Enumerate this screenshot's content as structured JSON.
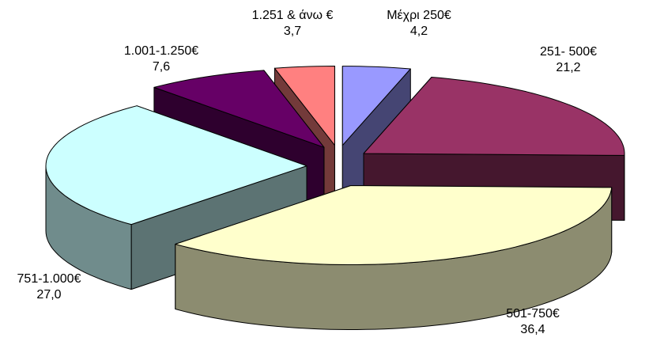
{
  "chart_data": {
    "type": "pie",
    "style": "3d-exploded",
    "legend": "none",
    "slices": [
      {
        "label": "Μέχρι 250€",
        "value": 4.2,
        "value_text": "4,2",
        "color": "#9999ff"
      },
      {
        "label": "251- 500€",
        "value": 21.2,
        "value_text": "21,2",
        "color": "#993366"
      },
      {
        "label": "501-750€",
        "value": 36.4,
        "value_text": "36,4",
        "color": "#ffffcc"
      },
      {
        "label": "751-1.000€",
        "value": 27.0,
        "value_text": "27,0",
        "color": "#ccffff"
      },
      {
        "label": "1.001-1.250€",
        "value": 7.6,
        "value_text": "7,6",
        "color": "#660066"
      },
      {
        "label": "1.251 & άνω €",
        "value": 3.7,
        "value_text": "3,7",
        "color": "#ff8080"
      }
    ]
  }
}
